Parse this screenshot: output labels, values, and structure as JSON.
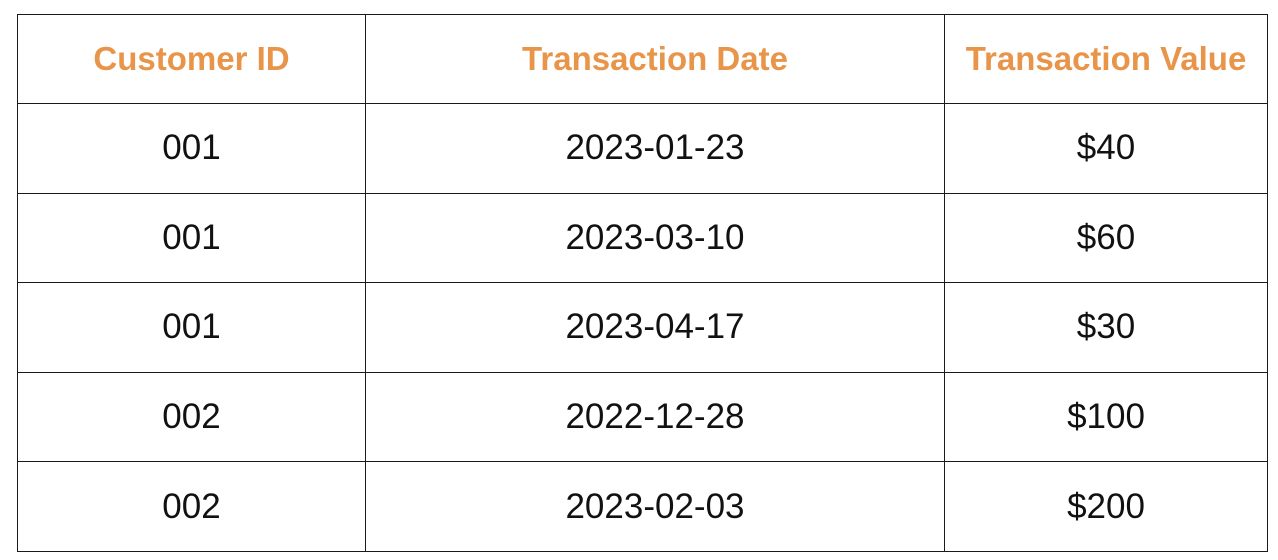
{
  "table": {
    "headers": [
      "Customer ID",
      "Transaction Date",
      "Transaction Value"
    ],
    "rows": [
      [
        "001",
        "2023-01-23",
        "$40"
      ],
      [
        "001",
        "2023-03-10",
        "$60"
      ],
      [
        "001",
        "2023-04-17",
        "$30"
      ],
      [
        "002",
        "2022-12-28",
        "$100"
      ],
      [
        "002",
        "2023-02-03",
        "$200"
      ]
    ]
  },
  "colors": {
    "header_text": "#e8954a",
    "cell_text": "#111111",
    "border": "#1a1a1a",
    "background": "#ffffff"
  }
}
